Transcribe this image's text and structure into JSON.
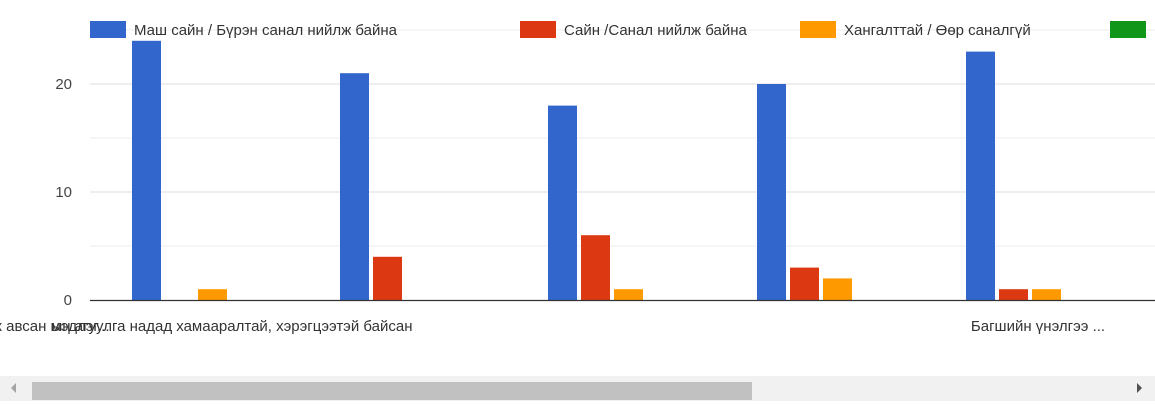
{
  "chart_data": {
    "type": "bar",
    "legend_position": "top",
    "grid": true,
    "ylim": [
      0,
      25
    ],
    "yticks": [
      0,
      10,
      20
    ],
    "categories": [
      "ын агуулга надад хамааралтай, хэрэгцээтэй байсан",
      "",
      "Сургалтаар олж авсан мэдлэг...",
      "",
      "Багшийн үнэлгээ ..."
    ],
    "series": [
      {
        "name": "Маш сайн / Бүрэн санал нийлж байна",
        "color": "#3366cc",
        "values": [
          24,
          21,
          18,
          20,
          23
        ]
      },
      {
        "name": "Сайн /Санал нийлж байна",
        "color": "#dc3912",
        "values": [
          0,
          4,
          6,
          3,
          1
        ]
      },
      {
        "name": "Хангалттай / Өөр саналгүй",
        "color": "#ff9900",
        "values": [
          1,
          0,
          1,
          2,
          1
        ]
      },
      {
        "name": "",
        "color": "#109618",
        "values": [
          0,
          0,
          0,
          0,
          0
        ]
      }
    ]
  },
  "scrollbar": {
    "left_icon": "scroll-left-arrow-icon",
    "right_icon": "scroll-right-arrow-icon"
  }
}
